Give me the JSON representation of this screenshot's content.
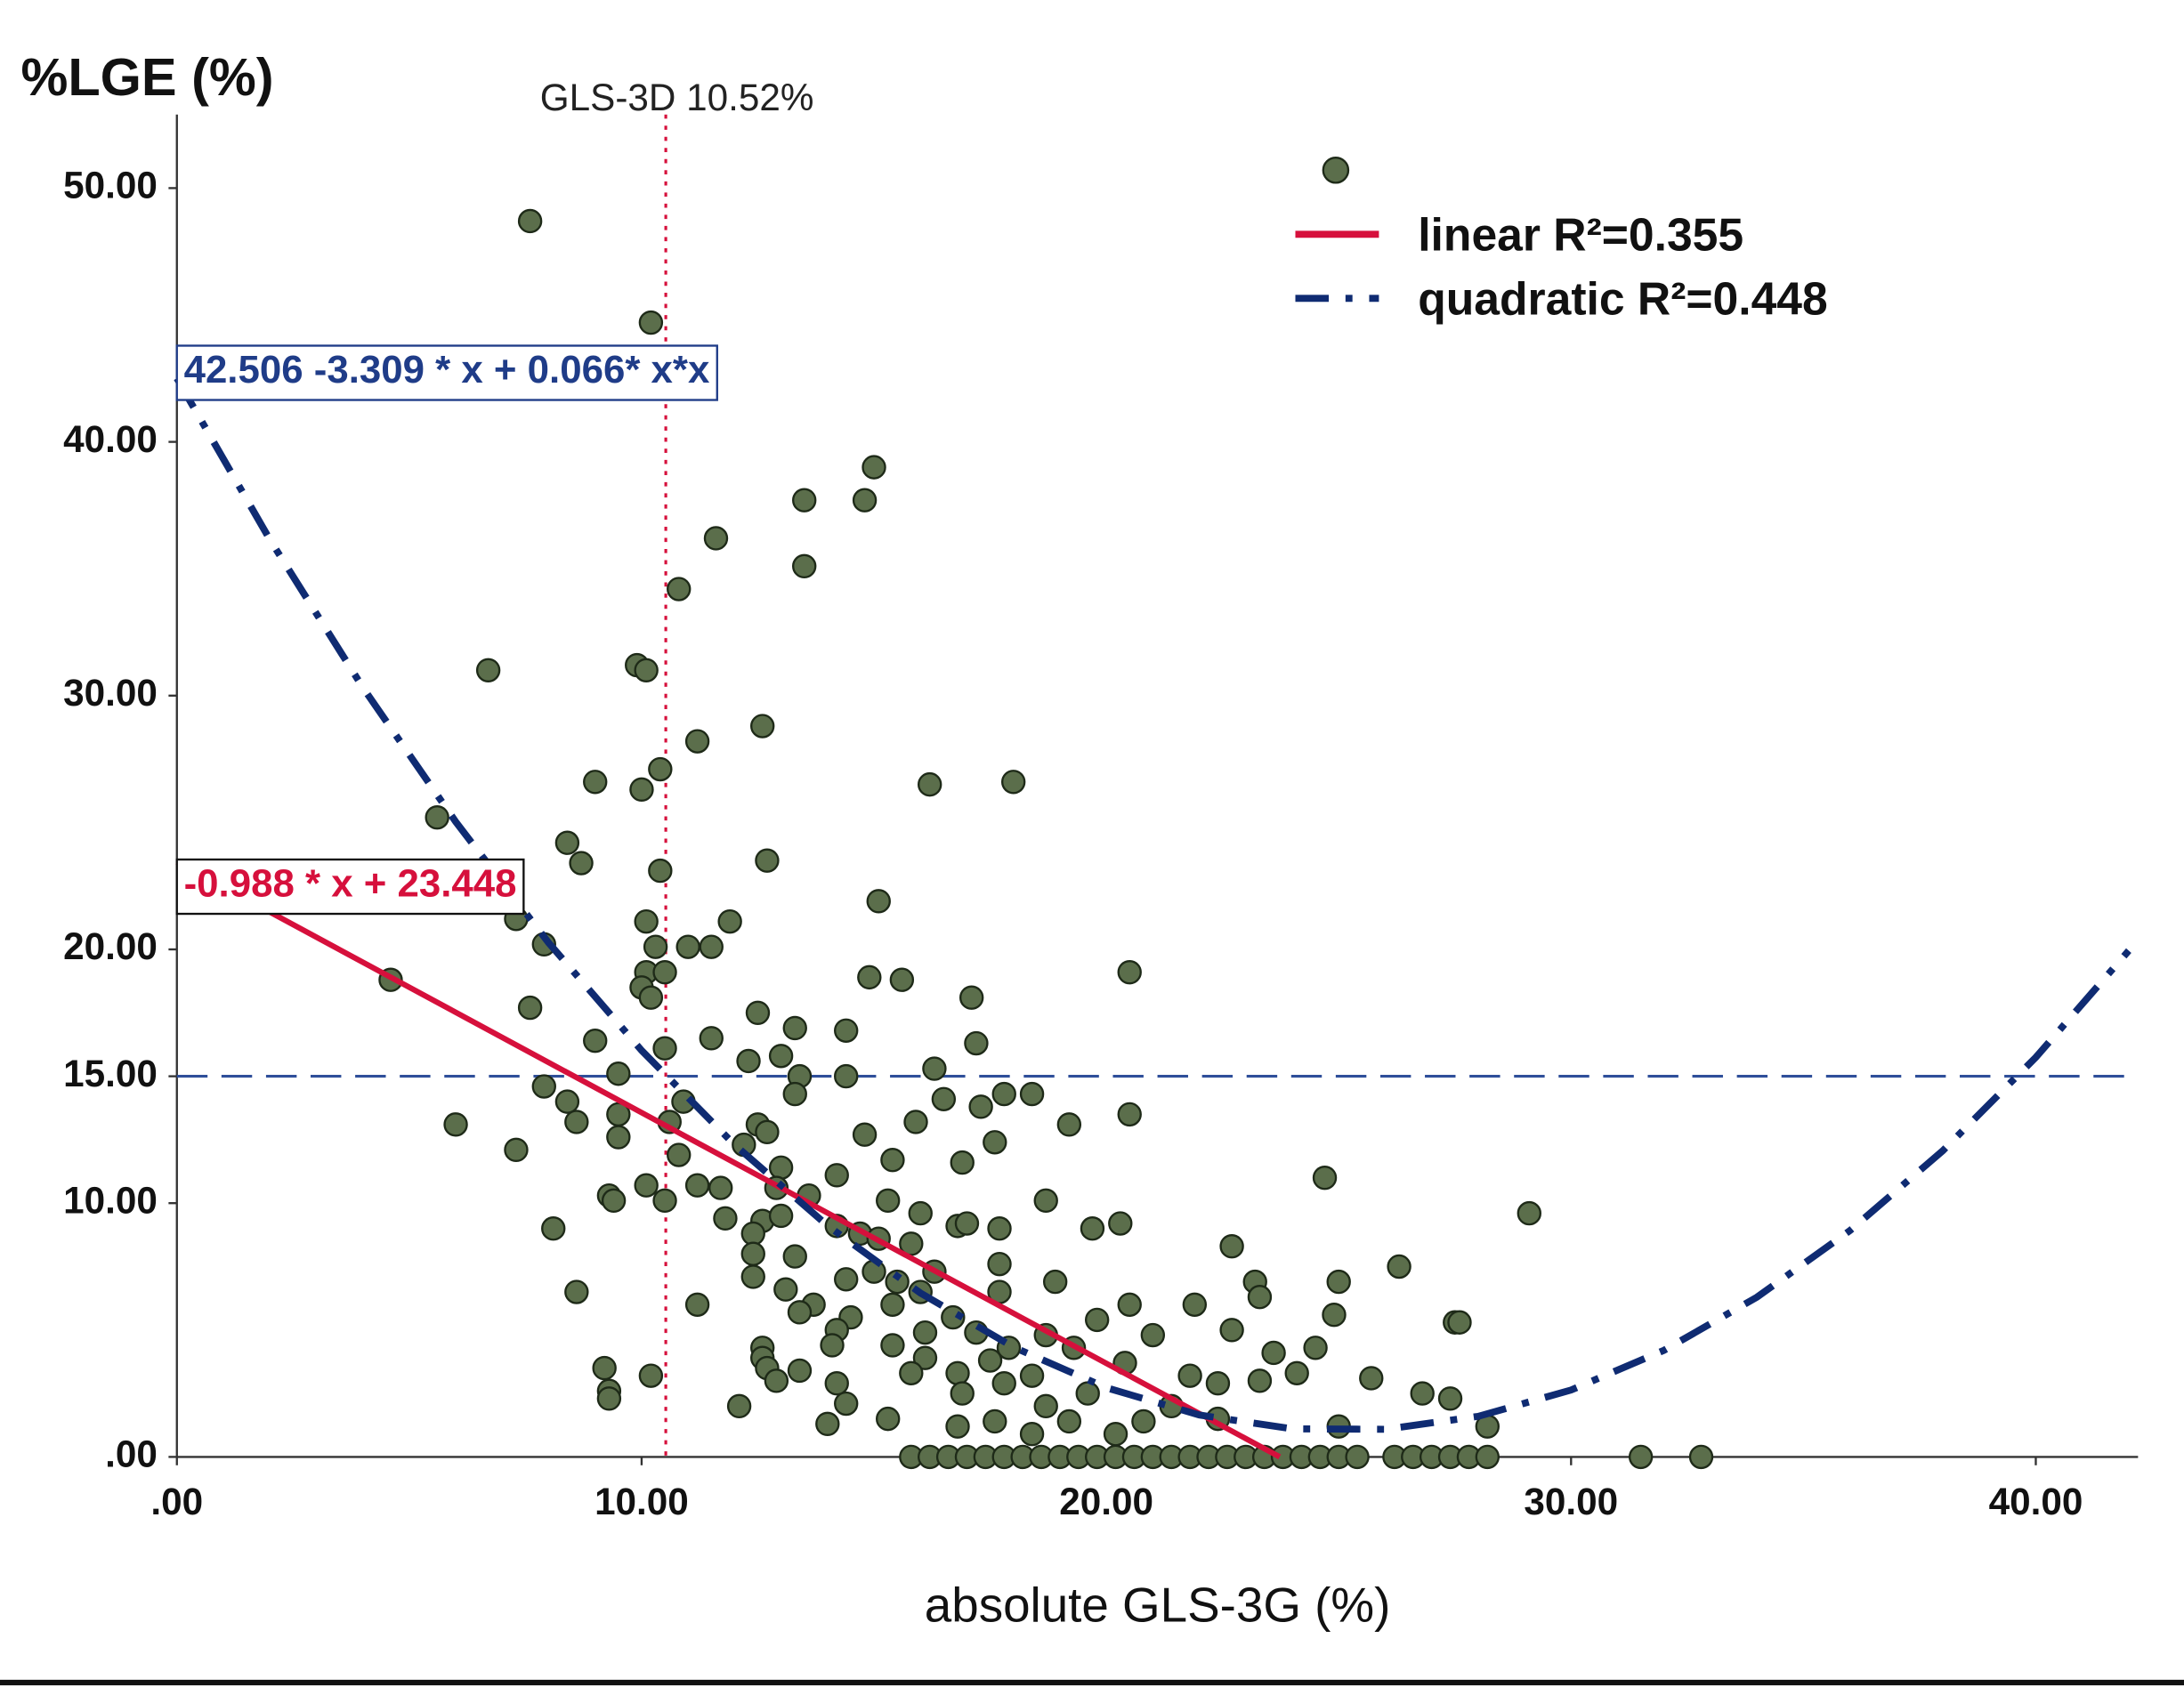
{
  "chart_data": {
    "type": "scatter",
    "title": "%LGE (%)",
    "x_label": "absolute GLS-3G (%)",
    "xlim": [
      0,
      42.2
    ],
    "ylim": [
      0,
      52.9
    ],
    "xticks": [
      {
        "value": 0,
        "label": ".00"
      },
      {
        "value": 10,
        "label": "10.00"
      },
      {
        "value": 20,
        "label": "20.00"
      },
      {
        "value": 30,
        "label": "30.00"
      },
      {
        "value": 40,
        "label": "40.00"
      }
    ],
    "yticks": [
      {
        "value": 0,
        "label": ".00"
      },
      {
        "value": 10,
        "label": "10.00"
      },
      {
        "value": 15,
        "label": "15.00"
      },
      {
        "value": 20,
        "label": "20.00"
      },
      {
        "value": 30,
        "label": "30.00"
      },
      {
        "value": 40,
        "label": "40.00"
      },
      {
        "value": 50,
        "label": "50.00"
      }
    ],
    "legend": "upper right",
    "series": [
      {
        "type": "scatter",
        "color": "#5b6e4b",
        "x": [
          7.6,
          10.2,
          15.0,
          13.5,
          14.8,
          11.6,
          13.5,
          10.8,
          6.7,
          9.9,
          10.1,
          12.6,
          11.2,
          10.4,
          9.0,
          10.0,
          16.2,
          18.0,
          5.6,
          8.4,
          8.7,
          12.7,
          10.4,
          7.3,
          15.1,
          10.1,
          11.9,
          11.0,
          11.5,
          7.9,
          10.3,
          10.1,
          10.5,
          20.5,
          4.6,
          14.9,
          15.6,
          10.0,
          10.2,
          17.1,
          7.6,
          12.5,
          13.3,
          14.4,
          11.5,
          9.0,
          17.2,
          10.5,
          12.3,
          13.0,
          9.5,
          13.4,
          14.4,
          16.3,
          7.9,
          8.4,
          13.3,
          16.5,
          18.4,
          17.8,
          17.3,
          20.5,
          6.0,
          8.6,
          9.5,
          10.9,
          10.6,
          15.9,
          19.2,
          12.5,
          12.7,
          14.8,
          7.3,
          9.5,
          10.8,
          12.2,
          13.0,
          16.9,
          17.6,
          15.4,
          14.2,
          24.7,
          10.1,
          11.2,
          11.7,
          12.9,
          9.3,
          9.4,
          10.5,
          13.6,
          15.3,
          18.7,
          29.1,
          8.1,
          11.8,
          12.6,
          13.0,
          14.2,
          14.7,
          16.0,
          16.8,
          17.0,
          17.7,
          19.7,
          20.3,
          12.4,
          15.1,
          15.8,
          22.7,
          12.4,
          13.3,
          17.7,
          26.3,
          15.0,
          16.3,
          12.4,
          14.4,
          15.5,
          18.9,
          23.2,
          25.0,
          8.6,
          13.1,
          16.0,
          17.7,
          23.3,
          11.2,
          13.7,
          15.4,
          20.5,
          21.9,
          13.4,
          14.5,
          16.7,
          24.9,
          19.8,
          27.5,
          27.6,
          14.2,
          16.1,
          17.2,
          18.7,
          21.0,
          22.7,
          12.6,
          14.1,
          15.4,
          17.9,
          19.3,
          23.6,
          24.5,
          12.6,
          16.1,
          17.5,
          20.4,
          9.2,
          12.7,
          13.4,
          15.8,
          16.8,
          18.4,
          21.8,
          24.1,
          10.2,
          25.7,
          12.9,
          14.2,
          17.8,
          22.4,
          23.3,
          9.3,
          16.9,
          19.6,
          26.8,
          27.4,
          9.3,
          12.1,
          14.4,
          18.7,
          21.4,
          15.3,
          17.6,
          19.2,
          20.8,
          22.4,
          14.0,
          16.8,
          28.2,
          25.0,
          18.4,
          20.2,
          15.8,
          16.2,
          16.6,
          17.0,
          17.4,
          17.8,
          18.2,
          18.6,
          19.0,
          19.4,
          19.8,
          20.2,
          20.6,
          21.0,
          21.4,
          21.8,
          22.2,
          22.6,
          23.0,
          23.4,
          23.8,
          24.2,
          24.6,
          25.0,
          25.4,
          26.2,
          26.6,
          27.0,
          27.4,
          27.8,
          28.2,
          31.5,
          32.8
        ],
        "values": [
          48.7,
          44.7,
          39.0,
          37.7,
          37.7,
          36.2,
          35.1,
          34.2,
          31.0,
          31.2,
          31.0,
          28.8,
          28.2,
          27.1,
          26.6,
          26.3,
          26.5,
          26.6,
          25.2,
          24.2,
          23.4,
          23.5,
          23.1,
          21.2,
          21.9,
          21.1,
          21.1,
          20.1,
          20.1,
          20.2,
          20.1,
          19.1,
          19.1,
          19.1,
          18.8,
          18.9,
          18.8,
          18.5,
          18.1,
          18.1,
          17.7,
          17.5,
          16.9,
          16.8,
          16.5,
          16.4,
          16.3,
          16.1,
          15.6,
          15.8,
          15.1,
          15.0,
          15.0,
          15.3,
          14.6,
          14.0,
          14.3,
          14.1,
          14.3,
          14.3,
          13.8,
          13.5,
          13.1,
          13.2,
          13.5,
          14.0,
          13.2,
          13.2,
          13.1,
          13.1,
          12.8,
          12.7,
          12.1,
          12.6,
          11.9,
          12.3,
          11.4,
          11.6,
          12.4,
          11.7,
          11.1,
          11.0,
          10.7,
          10.7,
          10.6,
          10.6,
          10.3,
          10.1,
          10.1,
          10.3,
          10.1,
          10.1,
          9.6,
          9.0,
          9.4,
          9.3,
          9.5,
          9.1,
          8.8,
          9.6,
          9.1,
          9.2,
          9.0,
          9.0,
          9.2,
          8.8,
          8.6,
          8.4,
          8.3,
          8.0,
          7.9,
          7.6,
          7.5,
          7.3,
          7.3,
          7.1,
          7.0,
          6.9,
          6.9,
          6.9,
          6.9,
          6.5,
          6.6,
          6.5,
          6.5,
          6.3,
          6.0,
          6.0,
          6.0,
          6.0,
          6.0,
          5.7,
          5.5,
          5.5,
          5.6,
          5.4,
          5.3,
          5.3,
          5.0,
          4.9,
          4.9,
          4.8,
          4.8,
          5.0,
          4.3,
          4.4,
          4.4,
          4.3,
          4.3,
          4.1,
          4.3,
          3.9,
          3.9,
          3.8,
          3.7,
          3.5,
          3.5,
          3.4,
          3.3,
          3.3,
          3.2,
          3.2,
          3.3,
          3.2,
          3.1,
          3.0,
          2.9,
          2.9,
          2.9,
          3.0,
          2.6,
          2.5,
          2.5,
          2.5,
          2.3,
          2.3,
          2.0,
          2.1,
          2.0,
          2.0,
          1.5,
          1.4,
          1.4,
          1.4,
          1.5,
          1.3,
          1.2,
          1.2,
          1.2,
          0.9,
          0.9,
          0,
          0,
          0,
          0,
          0,
          0,
          0,
          0,
          0,
          0,
          0,
          0,
          0,
          0,
          0,
          0,
          0,
          0,
          0,
          0,
          0,
          0,
          0,
          0,
          0,
          0,
          0,
          0,
          0,
          0,
          0,
          0,
          0
        ]
      },
      {
        "type": "line",
        "name": "linear  R²=0.355",
        "color": "#d6103c",
        "style": "solid",
        "x": [
          0,
          23.73
        ],
        "values": [
          23.448,
          0
        ]
      },
      {
        "type": "line",
        "name": "quadratic R²=0.448",
        "color": "#0f2b72",
        "style": "dash-dot",
        "x": [
          0,
          2,
          4,
          6,
          8,
          10,
          12,
          14,
          16,
          18,
          20,
          22,
          24,
          26,
          28,
          30,
          32,
          34,
          36,
          38,
          40,
          42
        ],
        "values": [
          42.506,
          36.152,
          30.326,
          25.028,
          20.258,
          16.016,
          12.302,
          9.116,
          6.458,
          4.328,
          2.726,
          1.652,
          1.106,
          1.088,
          1.598,
          2.636,
          4.202,
          6.296,
          8.918,
          12.068,
          15.746,
          19.952
        ]
      }
    ],
    "annotations": [
      {
        "text": "42.506 -3.309 * x + 0.066* x*x",
        "color": "#1f3c88"
      },
      {
        "text": "-0.988 * x + 23.448",
        "color": "#d6103c"
      }
    ],
    "reference_lines": [
      {
        "axis": "x",
        "value": 10.52,
        "label": "GLS-3D 10.52%",
        "color": "#d6103c"
      },
      {
        "axis": "y",
        "value": 15,
        "color": "#2f4f9a"
      }
    ]
  }
}
